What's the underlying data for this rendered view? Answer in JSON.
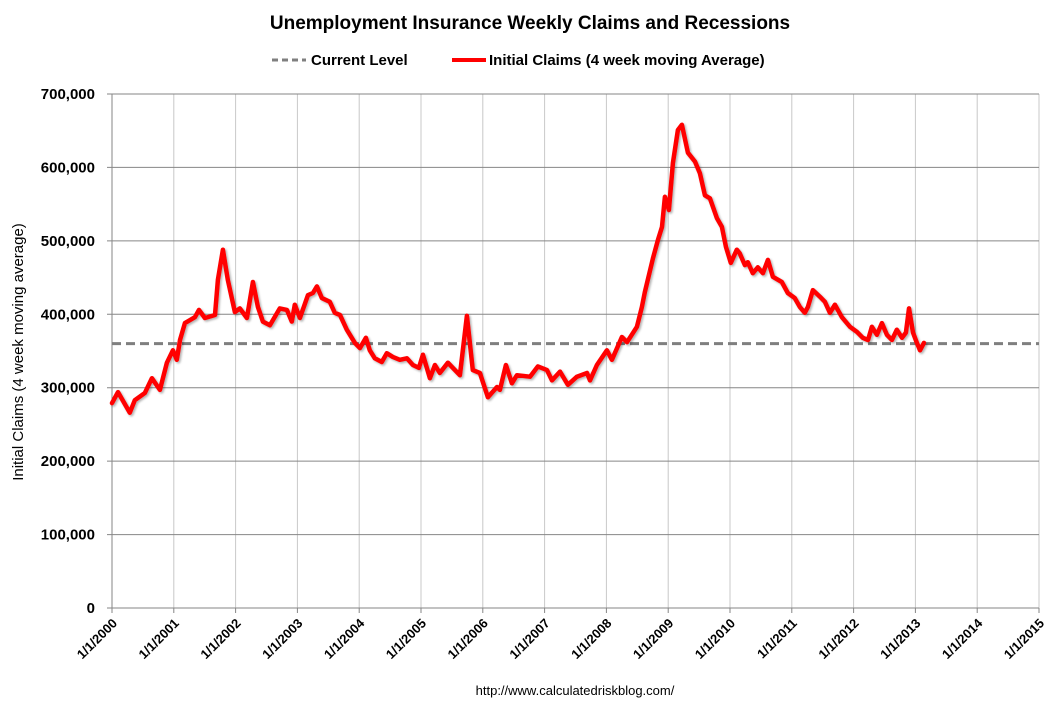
{
  "chart_data": {
    "type": "line",
    "title": "Unemployment Insurance Weekly Claims and Recessions",
    "ylabel": "Initial Claims (4 week moving average)",
    "xlabel": "",
    "source": "http://www.calculatedriskblog.com/",
    "ylim": [
      0,
      700000
    ],
    "xlim": [
      "2000-01-01",
      "2015-01-01"
    ],
    "grid": true,
    "legend_position": "top-center",
    "y_ticks": [
      "0",
      "100,000",
      "200,000",
      "300,000",
      "400,000",
      "500,000",
      "600,000",
      "700,000"
    ],
    "x_ticks": [
      "1/1/2000",
      "1/1/2001",
      "1/1/2002",
      "1/1/2003",
      "1/1/2004",
      "1/1/2005",
      "1/1/2006",
      "1/1/2007",
      "1/1/2008",
      "1/1/2009",
      "1/1/2010",
      "1/1/2011",
      "1/1/2012",
      "1/1/2013",
      "1/1/2014",
      "1/1/2015"
    ],
    "series": [
      {
        "name": "Current Level",
        "style": "dashed",
        "color": "#7f7f7f",
        "value": 360000
      },
      {
        "name": "Initial Claims (4 week moving Average)",
        "style": "solid",
        "color": "#ff0000",
        "x": [
          "2000-01-01",
          "2000-02-06",
          "2000-04-15",
          "2000-05-14",
          "2000-07-13",
          "2000-08-24",
          "2000-10-10",
          "2000-11-21",
          "2000-12-26",
          "2001-01-19",
          "2001-02-07",
          "2001-03-06",
          "2001-05-04",
          "2001-05-28",
          "2001-07-02",
          "2001-09-01",
          "2001-09-18",
          "2001-10-17",
          "2001-11-16",
          "2001-12-27",
          "2002-01-26",
          "2002-03-07",
          "2002-04-12",
          "2002-05-11",
          "2002-06-10",
          "2002-07-21",
          "2002-09-19",
          "2002-10-30",
          "2002-11-29",
          "2002-12-16",
          "2003-01-16",
          "2003-03-02",
          "2003-04-01",
          "2003-04-25",
          "2003-05-24",
          "2003-07-10",
          "2003-08-09",
          "2003-09-09",
          "2003-10-19",
          "2003-12-06",
          "2004-01-05",
          "2004-02-10",
          "2004-03-03",
          "2004-04-02",
          "2004-05-13",
          "2004-06-12",
          "2004-07-17",
          "2004-08-28",
          "2004-10-09",
          "2004-11-14",
          "2004-12-19",
          "2005-01-12",
          "2005-02-23",
          "2005-03-22",
          "2005-04-21",
          "2005-06-08",
          "2005-07-07",
          "2005-08-18",
          "2005-09-29",
          "2005-11-03",
          "2005-12-14",
          "2006-02-01",
          "2006-03-24",
          "2006-04-11",
          "2006-05-16",
          "2006-06-21",
          "2006-07-20",
          "2006-10-06",
          "2006-11-22",
          "2007-01-15",
          "2007-02-14",
          "2007-03-31",
          "2007-05-17",
          "2007-07-09",
          "2007-09-08",
          "2007-09-26",
          "2007-11-06",
          "2008-01-04",
          "2008-02-03",
          "2008-04-01",
          "2008-05-01",
          "2008-06-29",
          "2008-07-28",
          "2008-08-15",
          "2008-10-02",
          "2008-11-01",
          "2008-11-25",
          "2008-12-12",
          "2009-01-05",
          "2009-01-29",
          "2009-02-28",
          "2009-03-21",
          "2009-04-26",
          "2009-06-07",
          "2009-07-06",
          "2009-08-05",
          "2009-09-04",
          "2009-10-15",
          "2009-11-14",
          "2009-12-07",
          "2010-01-06",
          "2010-02-11",
          "2010-02-28",
          "2010-03-28",
          "2010-04-15",
          "2010-05-14",
          "2010-06-13",
          "2010-07-13",
          "2010-08-12",
          "2010-09-11",
          "2010-11-03",
          "2010-12-08",
          "2011-01-19",
          "2011-02-18",
          "2011-03-17",
          "2011-04-05",
          "2011-05-04",
          "2011-06-15",
          "2011-07-14",
          "2011-08-13",
          "2011-09-12",
          "2011-10-23",
          "2011-12-10",
          "2012-01-21",
          "2012-02-25",
          "2012-03-25",
          "2012-04-18",
          "2012-05-17",
          "2012-06-16",
          "2012-07-15",
          "2012-08-14",
          "2012-09-13",
          "2012-10-13",
          "2012-11-06",
          "2012-11-24",
          "2012-12-17",
          "2013-01-10",
          "2013-01-28",
          "2013-02-21"
        ],
        "values": [
          279000,
          294000,
          266000,
          283000,
          293000,
          313000,
          297000,
          334000,
          351000,
          338000,
          365000,
          388000,
          396000,
          406000,
          395000,
          399000,
          447000,
          488000,
          447000,
          403000,
          408000,
          395000,
          444000,
          410000,
          390000,
          385000,
          408000,
          406000,
          390000,
          413000,
          395000,
          426000,
          429000,
          438000,
          422000,
          417000,
          402000,
          399000,
          379000,
          361000,
          354000,
          368000,
          351000,
          340000,
          335000,
          347000,
          342000,
          338000,
          340000,
          331000,
          327000,
          345000,
          313000,
          331000,
          320000,
          334000,
          327000,
          317000,
          398000,
          324000,
          320000,
          287000,
          301000,
          297000,
          331000,
          306000,
          317000,
          315000,
          329000,
          324000,
          310000,
          322000,
          304000,
          315000,
          320000,
          310000,
          331000,
          351000,
          338000,
          369000,
          362000,
          383000,
          410000,
          430000,
          476000,
          501000,
          519000,
          560000,
          542000,
          606000,
          651000,
          658000,
          620000,
          608000,
          592000,
          562000,
          558000,
          531000,
          519000,
          492000,
          470000,
          488000,
          483000,
          467000,
          471000,
          456000,
          464000,
          456000,
          474000,
          451000,
          444000,
          429000,
          422000,
          410000,
          402000,
          410000,
          433000,
          424000,
          417000,
          402000,
          413000,
          396000,
          383000,
          376000,
          368000,
          365000,
          383000,
          372000,
          388000,
          372000,
          365000,
          379000,
          368000,
          375000,
          408000,
          375000,
          361000,
          351000,
          361000
        ]
      }
    ]
  }
}
